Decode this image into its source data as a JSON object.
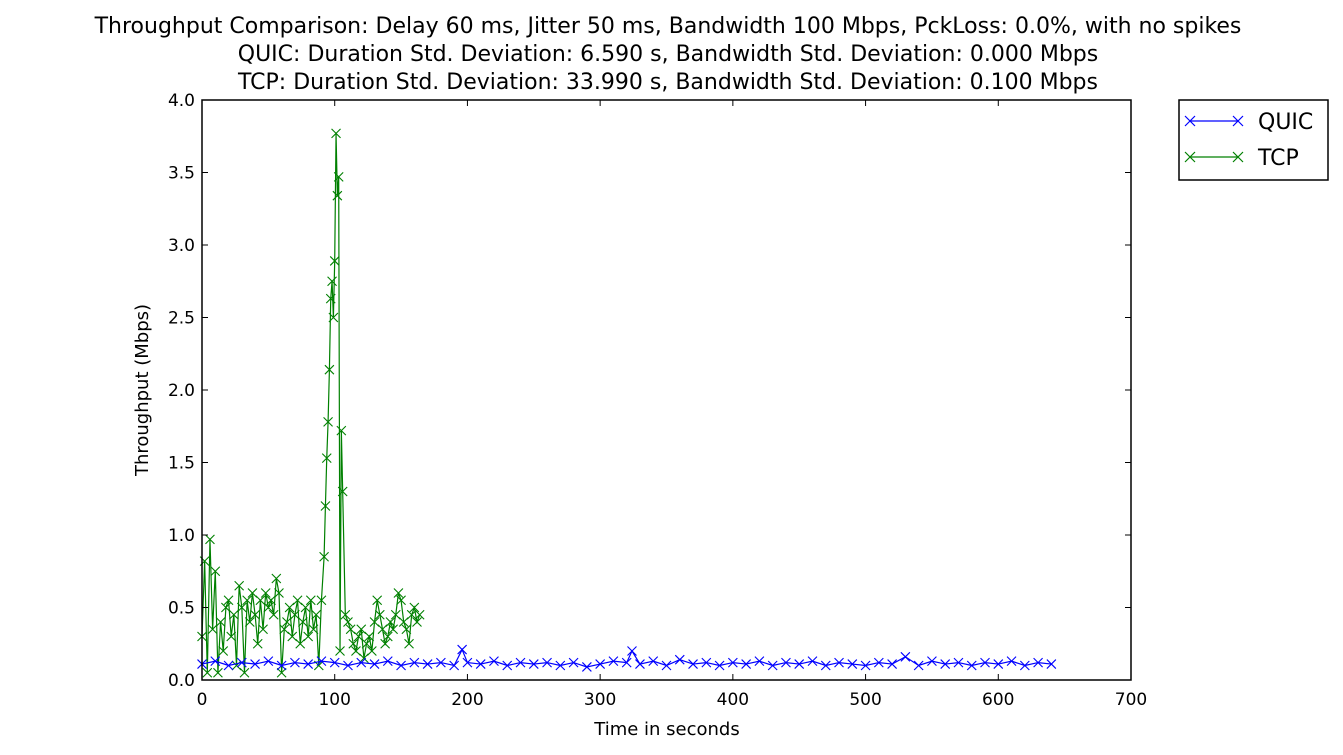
{
  "chart_data": {
    "type": "line",
    "title_lines": [
      "Throughput Comparison: Delay 60 ms, Jitter 50 ms, Bandwidth 100 Mbps, PckLoss: 0.0%, with no spikes",
      "QUIC: Duration Std. Deviation: 6.590 s, Bandwidth Std. Deviation: 0.000 Mbps",
      "TCP: Duration Std. Deviation: 33.990 s, Bandwidth Std. Deviation: 0.100 Mbps"
    ],
    "xlabel": "Time in seconds",
    "ylabel": "Throughput (Mbps)",
    "xlim": [
      0,
      700
    ],
    "ylim": [
      0,
      4.0
    ],
    "xticks": [
      0,
      100,
      200,
      300,
      400,
      500,
      600,
      700
    ],
    "xtick_labels": [
      "0",
      "100",
      "200",
      "300",
      "400",
      "500",
      "600",
      "700"
    ],
    "yticks": [
      0,
      0.5,
      1.0,
      1.5,
      2.0,
      2.5,
      3.0,
      3.5,
      4.0
    ],
    "ytick_labels": [
      "0.0",
      "0.5",
      "1.0",
      "1.5",
      "2.0",
      "2.5",
      "3.0",
      "3.5",
      "4.0"
    ],
    "grid": false,
    "legend_position": "outside-top-right",
    "marker": "x",
    "series": [
      {
        "name": "QUIC",
        "color": "#0000ff",
        "x": [
          0,
          10,
          20,
          30,
          40,
          50,
          60,
          70,
          80,
          90,
          100,
          110,
          120,
          130,
          140,
          150,
          160,
          170,
          180,
          190,
          196,
          200,
          210,
          220,
          230,
          240,
          250,
          260,
          270,
          280,
          290,
          300,
          310,
          320,
          324,
          330,
          340,
          350,
          360,
          370,
          380,
          390,
          400,
          410,
          420,
          430,
          440,
          450,
          460,
          470,
          480,
          490,
          500,
          510,
          520,
          530,
          540,
          550,
          560,
          570,
          580,
          590,
          600,
          610,
          620,
          630,
          640
        ],
        "y": [
          0.11,
          0.13,
          0.1,
          0.12,
          0.11,
          0.13,
          0.1,
          0.12,
          0.11,
          0.13,
          0.12,
          0.1,
          0.12,
          0.11,
          0.13,
          0.1,
          0.12,
          0.11,
          0.12,
          0.1,
          0.21,
          0.12,
          0.11,
          0.13,
          0.1,
          0.12,
          0.11,
          0.12,
          0.1,
          0.12,
          0.09,
          0.11,
          0.13,
          0.12,
          0.2,
          0.11,
          0.13,
          0.1,
          0.14,
          0.11,
          0.12,
          0.1,
          0.12,
          0.11,
          0.13,
          0.1,
          0.12,
          0.11,
          0.13,
          0.1,
          0.12,
          0.11,
          0.1,
          0.12,
          0.11,
          0.16,
          0.1,
          0.13,
          0.11,
          0.12,
          0.1,
          0.12,
          0.11,
          0.13,
          0.1,
          0.12,
          0.11
        ]
      },
      {
        "name": "TCP",
        "color": "#008000",
        "x": [
          0,
          2,
          4,
          6,
          8,
          10,
          12,
          14,
          16,
          18,
          20,
          22,
          24,
          26,
          28,
          30,
          32,
          34,
          36,
          38,
          40,
          42,
          44,
          46,
          48,
          50,
          52,
          54,
          56,
          58,
          60,
          62,
          64,
          66,
          68,
          70,
          72,
          74,
          76,
          78,
          80,
          82,
          84,
          86,
          88,
          90,
          92,
          93,
          94,
          95,
          96,
          97,
          98,
          99,
          100,
          101,
          102,
          103,
          104,
          105,
          106,
          108,
          110,
          112,
          114,
          116,
          118,
          120,
          122,
          124,
          126,
          128,
          130,
          132,
          134,
          136,
          138,
          140,
          142,
          144,
          146,
          148,
          150,
          152,
          154,
          156,
          158,
          160,
          162,
          164
        ],
        "y": [
          0.3,
          0.82,
          0.05,
          0.97,
          0.35,
          0.75,
          0.05,
          0.4,
          0.2,
          0.5,
          0.55,
          0.3,
          0.45,
          0.1,
          0.65,
          0.5,
          0.05,
          0.55,
          0.4,
          0.6,
          0.45,
          0.25,
          0.55,
          0.35,
          0.6,
          0.5,
          0.55,
          0.45,
          0.7,
          0.6,
          0.05,
          0.35,
          0.4,
          0.5,
          0.3,
          0.45,
          0.55,
          0.25,
          0.4,
          0.5,
          0.3,
          0.55,
          0.35,
          0.45,
          0.1,
          0.55,
          0.85,
          1.2,
          1.53,
          1.78,
          2.14,
          2.63,
          2.75,
          2.5,
          2.89,
          3.77,
          3.34,
          3.47,
          0.2,
          1.72,
          1.3,
          0.45,
          0.4,
          0.35,
          0.25,
          0.2,
          0.3,
          0.35,
          0.15,
          0.25,
          0.3,
          0.2,
          0.4,
          0.55,
          0.45,
          0.35,
          0.25,
          0.3,
          0.4,
          0.35,
          0.45,
          0.6,
          0.55,
          0.4,
          0.35,
          0.25,
          0.45,
          0.5,
          0.4,
          0.45
        ]
      }
    ]
  }
}
